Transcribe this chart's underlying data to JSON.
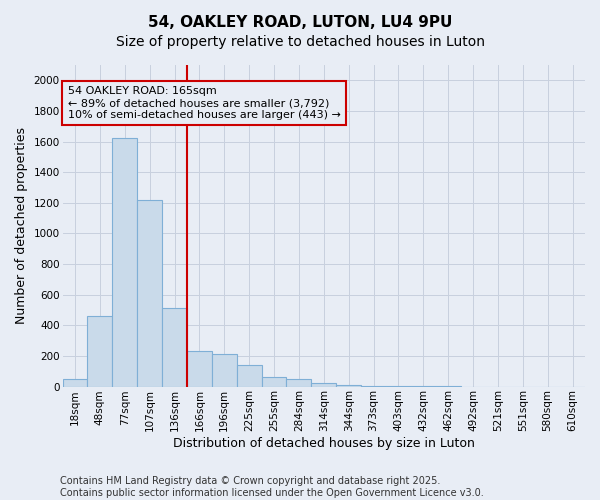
{
  "title1": "54, OAKLEY ROAD, LUTON, LU4 9PU",
  "title2": "Size of property relative to detached houses in Luton",
  "xlabel": "Distribution of detached houses by size in Luton",
  "ylabel": "Number of detached properties",
  "categories": [
    "18sqm",
    "48sqm",
    "77sqm",
    "107sqm",
    "136sqm",
    "166sqm",
    "196sqm",
    "225sqm",
    "255sqm",
    "284sqm",
    "314sqm",
    "344sqm",
    "373sqm",
    "403sqm",
    "432sqm",
    "462sqm",
    "492sqm",
    "521sqm",
    "551sqm",
    "580sqm",
    "610sqm"
  ],
  "values": [
    50,
    460,
    1620,
    1220,
    510,
    230,
    210,
    140,
    60,
    50,
    20,
    10,
    5,
    2,
    1,
    1,
    0,
    0,
    0,
    0,
    0
  ],
  "bar_color": "#c9daea",
  "bar_edge_color": "#7fafd6",
  "grid_color": "#c8d0de",
  "background_color": "#e8edf5",
  "annotation_box_color": "#cc0000",
  "property_line_color": "#cc0000",
  "property_line_index": 4.5,
  "annotation_text": "54 OAKLEY ROAD: 165sqm\n← 89% of detached houses are smaller (3,792)\n10% of semi-detached houses are larger (443) →",
  "ylim": [
    0,
    2100
  ],
  "yticks": [
    0,
    200,
    400,
    600,
    800,
    1000,
    1200,
    1400,
    1600,
    1800,
    2000
  ],
  "footer1": "Contains HM Land Registry data © Crown copyright and database right 2025.",
  "footer2": "Contains public sector information licensed under the Open Government Licence v3.0.",
  "title_fontsize": 11,
  "subtitle_fontsize": 10,
  "axis_label_fontsize": 9,
  "tick_fontsize": 7.5,
  "annotation_fontsize": 8,
  "footer_fontsize": 7
}
